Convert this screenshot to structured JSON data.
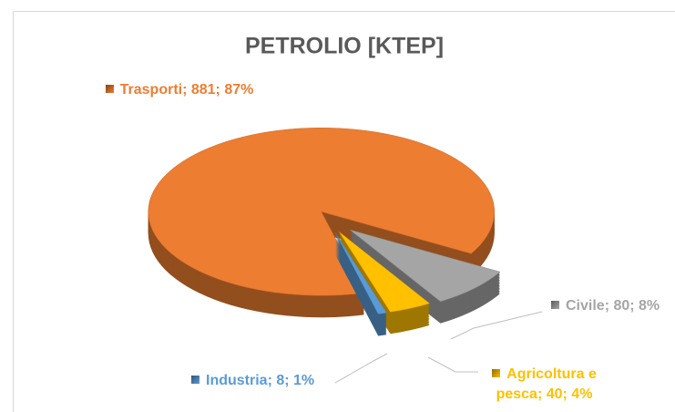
{
  "chart_data": {
    "type": "pie3d",
    "title": "PETROLIO [KTEP]",
    "categories": [
      "Trasporti",
      "Civile",
      "Agricoltura e pesca",
      "Industria"
    ],
    "values": [
      881,
      80,
      40,
      8
    ],
    "value_labels": [
      "Trasporti; 881; 87%",
      "Civile; 80; 8%",
      "Agricoltura e pesca; 40; 4%",
      "Industria; 8; 1%"
    ],
    "colors": [
      "#ed7d31",
      "#a5a5a5",
      "#ffc000",
      "#5b9bd5"
    ],
    "label_colors": [
      "#ed7d31",
      "#a5a5a5",
      "#ffc000",
      "#5b9bd5"
    ]
  }
}
